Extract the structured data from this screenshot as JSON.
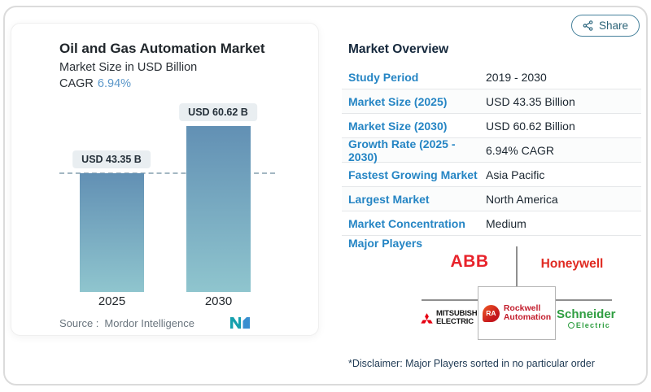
{
  "share": {
    "label": "Share",
    "icon": "share-nodes-icon",
    "border_color": "#45809b",
    "text_color": "#2c6478"
  },
  "chart_card": {
    "title": "Oil and Gas Automation Market",
    "subtitle": "Market Size in USD Billion",
    "cagr_label": "CAGR",
    "cagr_value": "6.94%",
    "source_label": "Source :",
    "source_value": "Mordor Intelligence",
    "logo": "mordor-intelligence-logo"
  },
  "chart_data": {
    "type": "bar",
    "categories": [
      "2025",
      "2030"
    ],
    "values": [
      43.35,
      60.62
    ],
    "bar_labels": [
      "USD 43.35 B",
      "USD 60.62 B"
    ],
    "title": "Oil and Gas Automation Market",
    "xlabel": "",
    "ylabel": "Market Size in USD Billion",
    "ylim": [
      0,
      60.62
    ],
    "reference_line": 43.35,
    "grid": false,
    "bar_color_top": "#6290b4",
    "bar_color_bottom": "#8fc5ce",
    "reference_line_color": "#a3b7c2"
  },
  "overview": {
    "heading": "Market Overview",
    "rows": [
      {
        "label": "Study Period",
        "value": "2019 - 2030"
      },
      {
        "label": "Market Size (2025)",
        "value": "USD 43.35 Billion"
      },
      {
        "label": "Market Size (2030)",
        "value": "USD 60.62 Billion"
      },
      {
        "label": "Growth Rate (2025 - 2030)",
        "value": "6.94% CAGR"
      },
      {
        "label": "Fastest Growing Market",
        "value": "Asia Pacific"
      },
      {
        "label": "Largest Market",
        "value": "North America"
      },
      {
        "label": "Market Concentration",
        "value": "Medium"
      }
    ],
    "major_players_label": "Major Players",
    "players": [
      {
        "name": "ABB",
        "logo": "abb-logo",
        "color": "#e8232b"
      },
      {
        "name": "Honeywell",
        "logo": "honeywell-logo",
        "color": "#e02a21"
      },
      {
        "name": "Mitsubishi Electric",
        "logo": "mitsubishi-electric-logo",
        "lines": [
          "MITSUBISHI",
          "ELECTRIC"
        ],
        "color": "#e60012"
      },
      {
        "name": "Rockwell Automation",
        "logo": "rockwell-automation-logo",
        "badge": "RA",
        "lines": [
          "Rockwell",
          "Automation"
        ],
        "color": "#c31f2e"
      },
      {
        "name": "Schneider Electric",
        "logo": "schneider-electric-logo",
        "lines": [
          "Schneider",
          "Electric"
        ],
        "color": "#2f9e41"
      }
    ],
    "disclaimer": "*Disclaimer: Major Players sorted in no particular order",
    "label_color": "#2585c4",
    "value_color": "#1b2630"
  }
}
